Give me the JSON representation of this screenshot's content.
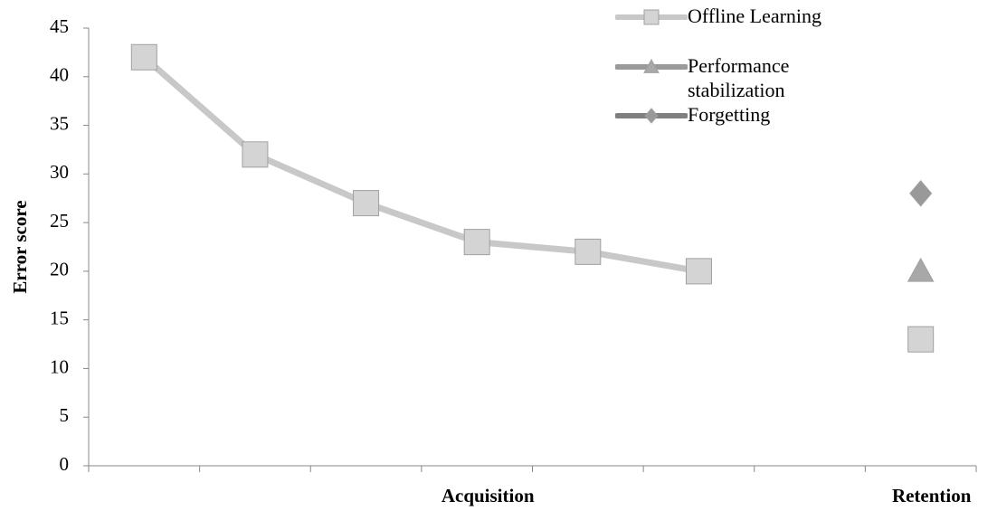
{
  "chart_data": {
    "type": "line",
    "y_label": "Error score",
    "categories": [
      null,
      null,
      null,
      "Acquisition",
      null,
      null,
      null,
      "Retention"
    ],
    "series": [
      {
        "name": "Offline Learning",
        "color": "#c8c8c8",
        "marker": "square",
        "values": [
          42,
          32,
          27,
          23,
          22,
          20,
          null,
          13
        ]
      },
      {
        "name": "Performance stabilization",
        "color": "#9a9a9a",
        "marker": "triangle",
        "values": [
          null,
          null,
          null,
          null,
          null,
          null,
          null,
          20
        ]
      },
      {
        "name": "Forgetting",
        "color": "#7f7f7f",
        "marker": "diamond",
        "values": [
          null,
          null,
          null,
          null,
          null,
          null,
          null,
          28
        ]
      }
    ],
    "ylim": [
      0,
      45
    ],
    "yticks": [
      0,
      5,
      10,
      15,
      20,
      25,
      30,
      35,
      40,
      45
    ],
    "legend": "top-right"
  }
}
